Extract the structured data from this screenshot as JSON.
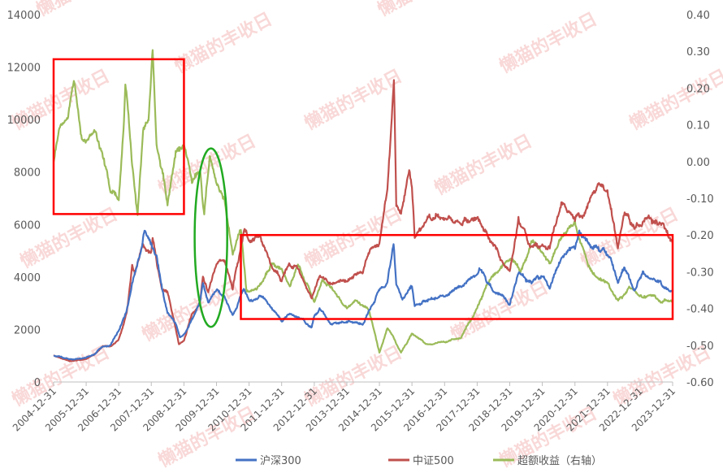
{
  "watermark": "懒猫的丰收日",
  "chart_data": {
    "type": "line",
    "xlabel": "",
    "ylabel": "",
    "y_left": {
      "min": 0,
      "max": 14000,
      "ticks": [
        "0",
        "2000",
        "4000",
        "6000",
        "8000",
        "10000",
        "12000",
        "14000"
      ]
    },
    "y_right": {
      "min": -0.6,
      "max": 0.4,
      "ticks": [
        "-0.60",
        "-0.50",
        "-0.40",
        "-0.30",
        "-0.20",
        "-0.10",
        "0.00",
        "0.10",
        "0.20",
        "0.30",
        "0.40"
      ]
    },
    "x_ticks": [
      "2004-12-31",
      "2005-12-31",
      "2006-12-31",
      "2007-12-31",
      "2008-12-31",
      "2009-12-31",
      "2010-12-31",
      "2011-12-31",
      "2012-12-31",
      "2013-12-31",
      "2014-12-31",
      "2015-12-31",
      "2016-12-31",
      "2017-12-31",
      "2018-12-31",
      "2019-12-31",
      "2020-12-31",
      "2021-12-31",
      "2022-12-31",
      "2023-12-31"
    ],
    "legend": {
      "position": "bottom",
      "items": [
        "沪深300",
        "中证500",
        "超额收益（右轴）"
      ]
    },
    "grid": false,
    "series": [
      {
        "name": "沪深300",
        "axis": "left",
        "color": "#4472c4",
        "points": [
          [
            "2004-12-31",
            1000
          ],
          [
            "2005-03-31",
            950
          ],
          [
            "2005-06-30",
            850
          ],
          [
            "2005-09-30",
            900
          ],
          [
            "2005-12-31",
            920
          ],
          [
            "2006-03-31",
            1050
          ],
          [
            "2006-06-30",
            1350
          ],
          [
            "2006-09-30",
            1400
          ],
          [
            "2006-12-31",
            2000
          ],
          [
            "2007-03-31",
            2700
          ],
          [
            "2007-05-31",
            3800
          ],
          [
            "2007-07-31",
            4500
          ],
          [
            "2007-09-30",
            5500
          ],
          [
            "2007-10-16",
            5800
          ],
          [
            "2007-12-31",
            5300
          ],
          [
            "2008-02-28",
            4800
          ],
          [
            "2008-04-30",
            3500
          ],
          [
            "2008-06-30",
            2700
          ],
          [
            "2008-09-30",
            2200
          ],
          [
            "2008-11-15",
            1700
          ],
          [
            "2008-12-31",
            1800
          ],
          [
            "2009-03-31",
            2400
          ],
          [
            "2009-06-30",
            3000
          ],
          [
            "2009-08-01",
            3800
          ],
          [
            "2009-09-30",
            3000
          ],
          [
            "2009-12-31",
            3500
          ],
          [
            "2010-03-31",
            3200
          ],
          [
            "2010-07-01",
            2500
          ],
          [
            "2010-11-01",
            3500
          ],
          [
            "2010-12-31",
            3100
          ],
          [
            "2011-04-30",
            3300
          ],
          [
            "2011-08-31",
            2900
          ],
          [
            "2011-12-31",
            2300
          ],
          [
            "2012-03-31",
            2600
          ],
          [
            "2012-06-30",
            2500
          ],
          [
            "2012-12-03",
            2100
          ],
          [
            "2012-12-31",
            2500
          ],
          [
            "2013-02-28",
            2800
          ],
          [
            "2013-06-30",
            2200
          ],
          [
            "2013-12-31",
            2300
          ],
          [
            "2014-06-30",
            2200
          ],
          [
            "2014-12-31",
            3500
          ],
          [
            "2015-03-31",
            3800
          ],
          [
            "2015-06-08",
            5350
          ],
          [
            "2015-07-08",
            3700
          ],
          [
            "2015-09-15",
            3200
          ],
          [
            "2015-12-31",
            3700
          ],
          [
            "2016-01-31",
            2900
          ],
          [
            "2016-06-30",
            3150
          ],
          [
            "2016-12-31",
            3300
          ],
          [
            "2017-06-30",
            3650
          ],
          [
            "2017-12-31",
            4050
          ],
          [
            "2018-01-24",
            4350
          ],
          [
            "2018-06-30",
            3500
          ],
          [
            "2018-12-31",
            3000
          ],
          [
            "2019-04-08",
            4100
          ],
          [
            "2019-08-31",
            3800
          ],
          [
            "2019-12-31",
            4100
          ],
          [
            "2020-03-23",
            3600
          ],
          [
            "2020-07-31",
            4700
          ],
          [
            "2020-12-31",
            5200
          ],
          [
            "2021-02-18",
            5800
          ],
          [
            "2021-06-30",
            5200
          ],
          [
            "2021-12-31",
            4950
          ],
          [
            "2022-04-26",
            3800
          ],
          [
            "2022-07-05",
            4450
          ],
          [
            "2022-10-31",
            3500
          ],
          [
            "2022-12-31",
            3900
          ],
          [
            "2023-01-31",
            4200
          ],
          [
            "2023-06-30",
            3850
          ],
          [
            "2023-12-31",
            3450
          ]
        ]
      },
      {
        "name": "中证500",
        "axis": "left",
        "color": "#c0504d",
        "points": [
          [
            "2004-12-31",
            1000
          ],
          [
            "2005-03-31",
            920
          ],
          [
            "2005-06-30",
            780
          ],
          [
            "2005-09-30",
            850
          ],
          [
            "2005-12-31",
            870
          ],
          [
            "2006-03-31",
            1050
          ],
          [
            "2006-06-30",
            1350
          ],
          [
            "2006-09-30",
            1350
          ],
          [
            "2006-12-31",
            1600
          ],
          [
            "2007-03-31",
            2600
          ],
          [
            "2007-05-31",
            4500
          ],
          [
            "2007-06-30",
            4200
          ],
          [
            "2007-09-30",
            5300
          ],
          [
            "2007-10-16",
            5100
          ],
          [
            "2007-12-31",
            5000
          ],
          [
            "2008-01-15",
            5400
          ],
          [
            "2008-04-30",
            3600
          ],
          [
            "2008-06-30",
            3400
          ],
          [
            "2008-09-30",
            2000
          ],
          [
            "2008-11-05",
            1450
          ],
          [
            "2008-12-31",
            1600
          ],
          [
            "2009-03-31",
            2600
          ],
          [
            "2009-06-30",
            3000
          ],
          [
            "2009-08-01",
            4000
          ],
          [
            "2009-09-30",
            3400
          ],
          [
            "2009-12-31",
            4500
          ],
          [
            "2010-03-31",
            4700
          ],
          [
            "2010-07-01",
            3600
          ],
          [
            "2010-11-10",
            5800
          ],
          [
            "2010-12-31",
            5400
          ],
          [
            "2011-04-30",
            5500
          ],
          [
            "2011-08-31",
            4500
          ],
          [
            "2011-12-31",
            3900
          ],
          [
            "2012-03-31",
            4500
          ],
          [
            "2012-06-30",
            4300
          ],
          [
            "2012-12-03",
            3200
          ],
          [
            "2012-12-31",
            3500
          ],
          [
            "2013-02-28",
            4100
          ],
          [
            "2013-06-30",
            3700
          ],
          [
            "2013-12-31",
            3900
          ],
          [
            "2014-03-31",
            4000
          ],
          [
            "2014-06-30",
            4300
          ],
          [
            "2014-09-30",
            5200
          ],
          [
            "2014-12-31",
            5300
          ],
          [
            "2015-03-31",
            7500
          ],
          [
            "2015-06-12",
            11500
          ],
          [
            "2015-07-08",
            6800
          ],
          [
            "2015-08-31",
            6500
          ],
          [
            "2015-11-30",
            8000
          ],
          [
            "2015-12-31",
            7500
          ],
          [
            "2016-01-31",
            5500
          ],
          [
            "2016-06-30",
            6300
          ],
          [
            "2016-12-31",
            6200
          ],
          [
            "2017-06-30",
            6100
          ],
          [
            "2017-12-31",
            6300
          ],
          [
            "2018-06-30",
            5200
          ],
          [
            "2018-12-31",
            4200
          ],
          [
            "2019-04-08",
            6200
          ],
          [
            "2019-08-31",
            5100
          ],
          [
            "2019-12-31",
            5300
          ],
          [
            "2020-03-23",
            5100
          ],
          [
            "2020-07-31",
            6800
          ],
          [
            "2020-12-31",
            6300
          ],
          [
            "2021-03-31",
            6400
          ],
          [
            "2021-09-13",
            7550
          ],
          [
            "2021-12-31",
            7350
          ],
          [
            "2022-04-26",
            5200
          ],
          [
            "2022-07-05",
            6400
          ],
          [
            "2022-10-31",
            6000
          ],
          [
            "2022-12-31",
            5900
          ],
          [
            "2023-03-31",
            6300
          ],
          [
            "2023-08-31",
            6000
          ],
          [
            "2023-12-31",
            5300
          ]
        ]
      },
      {
        "name": "超额收益（右轴）",
        "axis": "right",
        "color": "#9bbb59",
        "points": [
          [
            "2004-12-31",
            0.0
          ],
          [
            "2005-02-28",
            0.08
          ],
          [
            "2005-05-31",
            0.12
          ],
          [
            "2005-08-15",
            0.22
          ],
          [
            "2005-10-31",
            0.08
          ],
          [
            "2005-12-31",
            0.05
          ],
          [
            "2006-03-31",
            0.08
          ],
          [
            "2006-06-30",
            0.02
          ],
          [
            "2006-09-30",
            -0.08
          ],
          [
            "2006-12-31",
            -0.1
          ],
          [
            "2007-02-28",
            0.12
          ],
          [
            "2007-03-15",
            0.22
          ],
          [
            "2007-05-31",
            0.0
          ],
          [
            "2007-07-31",
            -0.15
          ],
          [
            "2007-09-30",
            0.08
          ],
          [
            "2007-11-30",
            0.12
          ],
          [
            "2008-01-15",
            0.3
          ],
          [
            "2008-02-28",
            0.05
          ],
          [
            "2008-04-30",
            -0.02
          ],
          [
            "2008-06-30",
            -0.12
          ],
          [
            "2008-09-30",
            0.02
          ],
          [
            "2008-12-31",
            0.05
          ],
          [
            "2009-03-31",
            -0.05
          ],
          [
            "2009-06-30",
            -0.02
          ],
          [
            "2009-08-15",
            -0.15
          ],
          [
            "2009-10-15",
            0.02
          ],
          [
            "2009-12-31",
            -0.05
          ],
          [
            "2010-03-31",
            -0.1
          ],
          [
            "2010-07-01",
            -0.25
          ],
          [
            "2010-09-30",
            -0.18
          ],
          [
            "2010-11-30",
            -0.35
          ],
          [
            "2011-03-31",
            -0.35
          ],
          [
            "2011-08-31",
            -0.28
          ],
          [
            "2011-12-31",
            -0.3
          ],
          [
            "2012-03-31",
            -0.34
          ],
          [
            "2012-06-30",
            -0.28
          ],
          [
            "2012-12-31",
            -0.38
          ],
          [
            "2013-03-31",
            -0.32
          ],
          [
            "2013-06-30",
            -0.34
          ],
          [
            "2013-12-31",
            -0.4
          ],
          [
            "2014-03-31",
            -0.38
          ],
          [
            "2014-08-31",
            -0.4
          ],
          [
            "2014-12-31",
            -0.52
          ],
          [
            "2015-03-31",
            -0.45
          ],
          [
            "2015-06-08",
            -0.48
          ],
          [
            "2015-08-31",
            -0.52
          ],
          [
            "2015-12-31",
            -0.47
          ],
          [
            "2016-06-30",
            -0.5
          ],
          [
            "2016-12-31",
            -0.49
          ],
          [
            "2017-06-30",
            -0.48
          ],
          [
            "2017-12-31",
            -0.4
          ],
          [
            "2018-04-30",
            -0.33
          ],
          [
            "2018-08-31",
            -0.3
          ],
          [
            "2018-12-31",
            -0.26
          ],
          [
            "2019-04-30",
            -0.3
          ],
          [
            "2019-08-31",
            -0.22
          ],
          [
            "2019-12-31",
            -0.24
          ],
          [
            "2020-03-31",
            -0.28
          ],
          [
            "2020-07-31",
            -0.2
          ],
          [
            "2020-12-31",
            -0.17
          ],
          [
            "2021-03-31",
            -0.24
          ],
          [
            "2021-06-30",
            -0.3
          ],
          [
            "2021-12-31",
            -0.33
          ],
          [
            "2022-04-30",
            -0.38
          ],
          [
            "2022-08-31",
            -0.34
          ],
          [
            "2022-12-31",
            -0.37
          ],
          [
            "2023-04-30",
            -0.36
          ],
          [
            "2023-08-31",
            -0.38
          ],
          [
            "2023-12-31",
            -0.38
          ]
        ]
      }
    ],
    "annotations": [
      {
        "shape": "rect",
        "color": "#ff0000",
        "from": [
          "2004-12-31",
          12300
        ],
        "to": [
          "2008-12-31",
          6400
        ]
      },
      {
        "shape": "ellipse",
        "color": "#22aa22",
        "from": [
          "2009-04-30",
          8900
        ],
        "to": [
          "2010-04-30",
          2100
        ]
      },
      {
        "shape": "rect",
        "color": "#ff0000",
        "from": [
          "2010-09-30",
          5600
        ],
        "to": [
          "2023-12-31",
          2400
        ]
      }
    ]
  }
}
